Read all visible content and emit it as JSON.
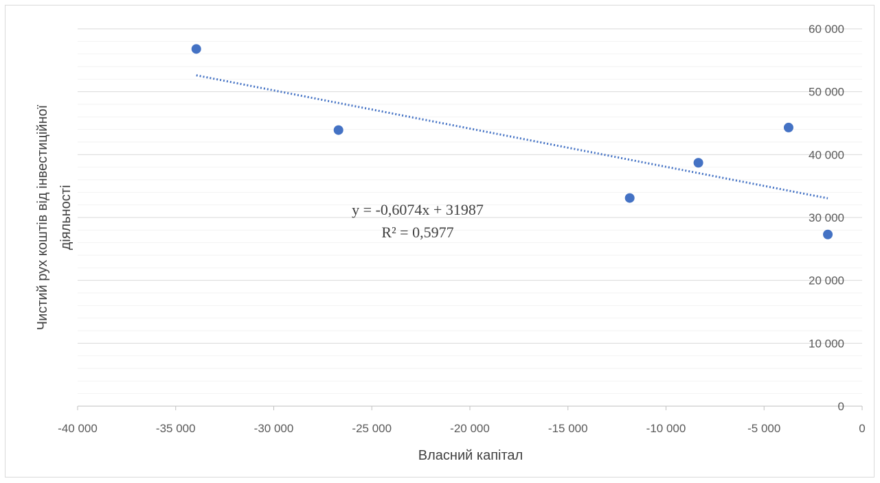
{
  "chart_data": {
    "type": "scatter",
    "title": "",
    "xlabel": "Власний капітал",
    "ylabel_lines": [
      "Чистий рух коштів від інвестиційної",
      "діяльності"
    ],
    "xlim": [
      -40000,
      0
    ],
    "ylim": [
      0,
      60000
    ],
    "x_ticks": [
      -40000,
      -35000,
      -30000,
      -25000,
      -20000,
      -15000,
      -10000,
      -5000,
      0
    ],
    "x_tick_labels": [
      "-40 000",
      "-35 000",
      "-30 000",
      "-25 000",
      "-20 000",
      "-15 000",
      "-10 000",
      "-5 000",
      "0"
    ],
    "y_ticks": [
      0,
      10000,
      20000,
      30000,
      40000,
      50000,
      60000
    ],
    "y_tick_labels": [
      "0",
      "10 000",
      "20 000",
      "30 000",
      "40 000",
      "50 000",
      "60 000"
    ],
    "y_axis_side": "right",
    "grid": {
      "major": true,
      "minor": true,
      "minor_step": 2000
    },
    "legend": "none",
    "series": [
      {
        "color": "#4472c4",
        "points": [
          {
            "x": -33950,
            "y": 56800
          },
          {
            "x": -26700,
            "y": 43900
          },
          {
            "x": -11850,
            "y": 33100
          },
          {
            "x": -8350,
            "y": 38700
          },
          {
            "x": -3750,
            "y": 44300
          },
          {
            "x": -1750,
            "y": 27300
          }
        ]
      }
    ],
    "trendline": {
      "type": "linear",
      "slope": -0.6074,
      "intercept": 31987,
      "x_range": [
        -33950,
        -1750
      ],
      "color": "#4472c4",
      "style": "dotted"
    },
    "annotations": {
      "equation": "y = -0,6074x + 31987",
      "r_squared": "R² = 0,5977"
    }
  }
}
